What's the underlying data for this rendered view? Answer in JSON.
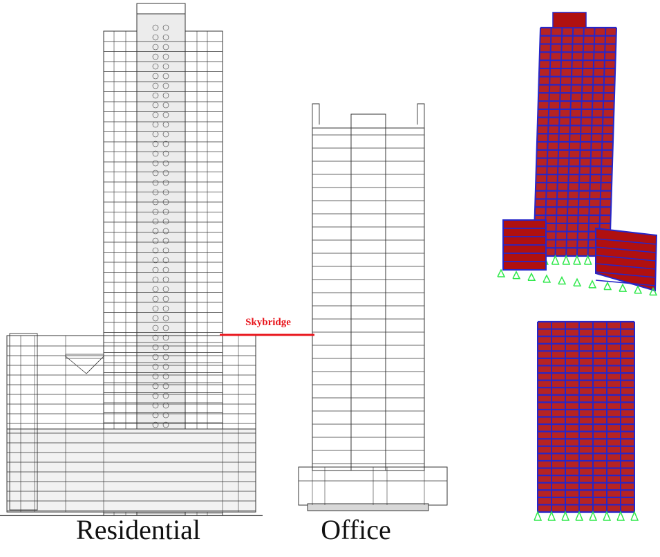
{
  "labels": {
    "skybridge": "Skybridge",
    "residential": "Residential",
    "office": "Office"
  },
  "colors": {
    "skybridge_line": "#e8141b",
    "drawing_line": "#333333",
    "model_frame": "#2626c8",
    "model_slab": "#b01010",
    "model_supports": "#2ee84a"
  }
}
